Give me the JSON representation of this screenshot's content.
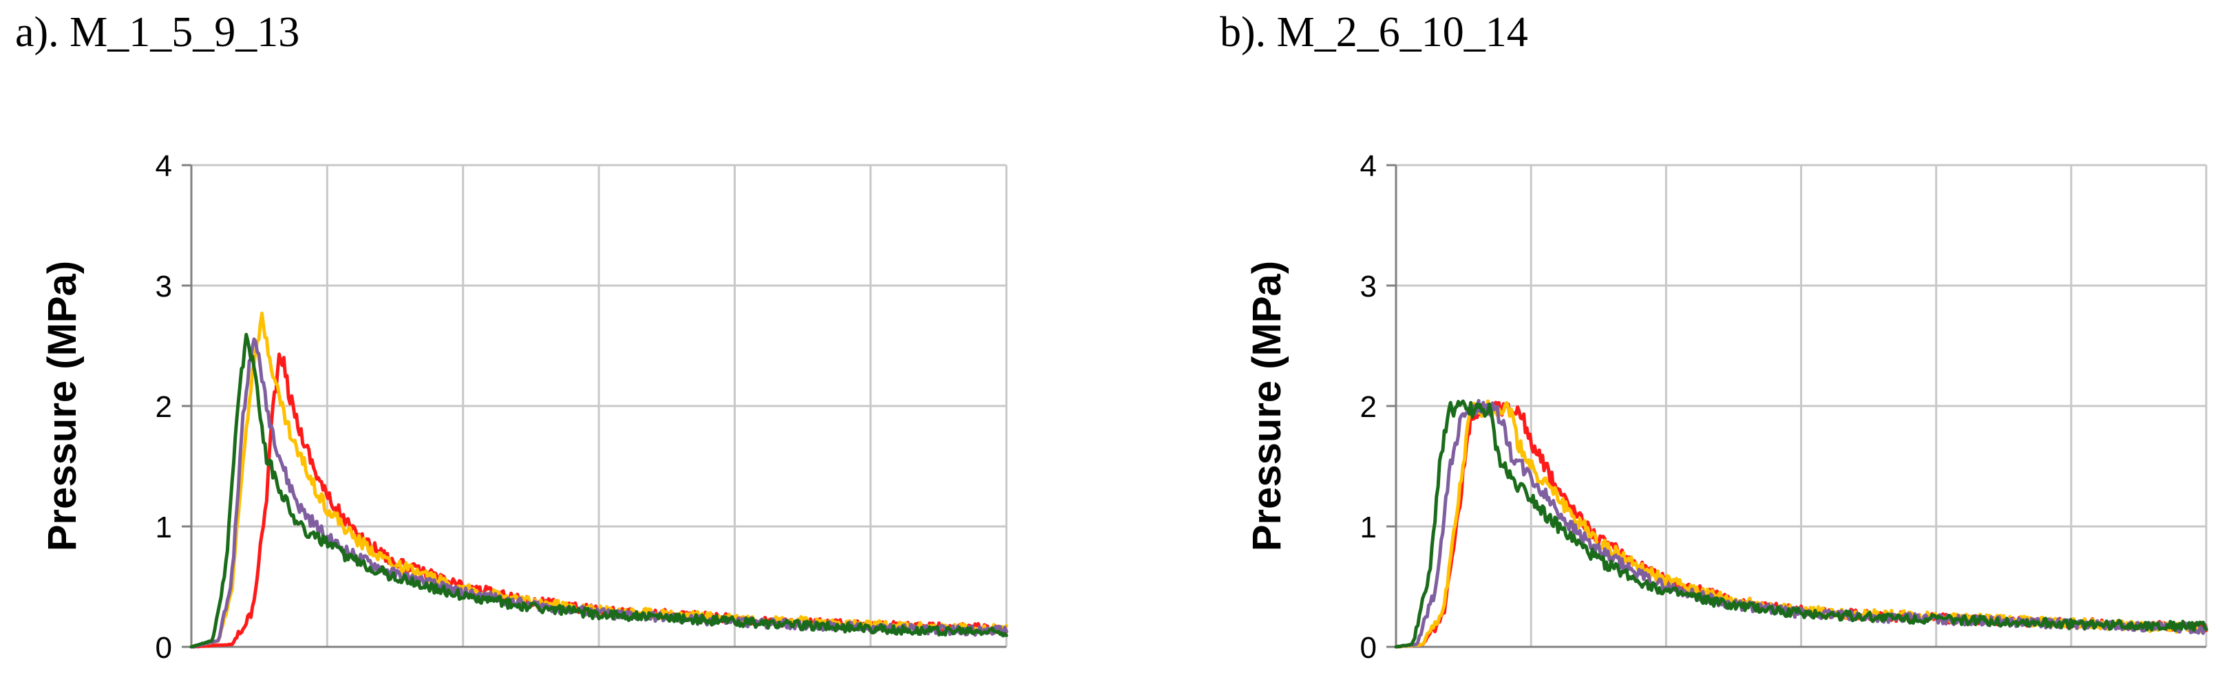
{
  "colors": {
    "red": "#ff1a1a",
    "yellow": "#ffc000",
    "purple": "#7f5f9f",
    "green": "#1a6b1a",
    "grid": "#c8c8c8",
    "axis": "#808080"
  },
  "chart_data": [
    {
      "type": "line",
      "title": "a). M_1_5_9_13",
      "xlabel": "",
      "ylabel": "Pressure (MPa)",
      "ylim": [
        0,
        4
      ],
      "yticks": [
        "0",
        "1",
        "2",
        "3",
        "4"
      ],
      "xlim": [
        0,
        6
      ],
      "grid": true,
      "x_tick_labels_visible": false,
      "series": [
        {
          "color": "#ff1a1a",
          "x": [
            0,
            0.3,
            0.45,
            0.55,
            0.6,
            0.65,
            0.68,
            0.72,
            0.8,
            0.9,
            1.0,
            1.2,
            1.5,
            2.0,
            2.5,
            3.0,
            3.5,
            4.0,
            4.5,
            5.0,
            5.5,
            6.0
          ],
          "y": [
            0,
            0.02,
            0.3,
            1.2,
            2.0,
            2.4,
            2.35,
            2.1,
            1.8,
            1.5,
            1.25,
            0.95,
            0.7,
            0.5,
            0.38,
            0.3,
            0.27,
            0.23,
            0.2,
            0.18,
            0.16,
            0.15
          ]
        },
        {
          "color": "#ffc000",
          "x": [
            0,
            0.2,
            0.3,
            0.4,
            0.47,
            0.52,
            0.58,
            0.65,
            0.75,
            0.9,
            1.0,
            1.2,
            1.5,
            2.0,
            2.5,
            3.0,
            3.5,
            4.0,
            4.5,
            5.0,
            5.5,
            6.0
          ],
          "y": [
            0,
            0.05,
            0.5,
            1.8,
            2.5,
            2.72,
            2.4,
            2.05,
            1.7,
            1.35,
            1.15,
            0.9,
            0.68,
            0.48,
            0.37,
            0.3,
            0.27,
            0.24,
            0.21,
            0.18,
            0.16,
            0.15
          ]
        },
        {
          "color": "#7f5f9f",
          "x": [
            0,
            0.2,
            0.3,
            0.38,
            0.45,
            0.5,
            0.55,
            0.62,
            0.7,
            0.8,
            1.0,
            1.2,
            1.5,
            2.0,
            2.5,
            3.0,
            3.5,
            4.0,
            4.5,
            5.0,
            5.5,
            6.0
          ],
          "y": [
            0,
            0.05,
            0.6,
            1.9,
            2.55,
            2.4,
            2.0,
            1.7,
            1.4,
            1.15,
            0.9,
            0.75,
            0.6,
            0.45,
            0.35,
            0.28,
            0.24,
            0.21,
            0.18,
            0.16,
            0.14,
            0.13
          ]
        },
        {
          "color": "#1a6b1a",
          "x": [
            0,
            0.15,
            0.25,
            0.33,
            0.4,
            0.45,
            0.5,
            0.55,
            0.6,
            0.7,
            0.8,
            1.0,
            1.2,
            1.5,
            2.0,
            2.5,
            3.0,
            3.5,
            4.0,
            4.5,
            5.0,
            5.5,
            6.0
          ],
          "y": [
            0,
            0.05,
            0.6,
            1.8,
            2.6,
            2.4,
            2.0,
            1.6,
            1.45,
            1.2,
            1.0,
            0.85,
            0.72,
            0.58,
            0.42,
            0.33,
            0.27,
            0.24,
            0.21,
            0.18,
            0.15,
            0.13,
            0.12
          ]
        }
      ]
    },
    {
      "type": "line",
      "title": "b). M_2_6_10_14",
      "xlabel": "",
      "ylabel": "Pressure (MPa)",
      "ylim": [
        0,
        4
      ],
      "yticks": [
        "0",
        "1",
        "2",
        "3",
        "4"
      ],
      "xlim": [
        0,
        6
      ],
      "grid": true,
      "x_tick_labels_visible": false,
      "series": [
        {
          "color": "#ff1a1a",
          "x": [
            0,
            0.2,
            0.35,
            0.45,
            0.55,
            0.65,
            0.75,
            0.85,
            0.92,
            0.98,
            1.05,
            1.15,
            1.3,
            1.5,
            1.8,
            2.0,
            2.5,
            3.0,
            3.5,
            4.0,
            4.5,
            5.0,
            5.5,
            6.0
          ],
          "y": [
            0,
            0.02,
            0.25,
            1.0,
            1.9,
            1.98,
            1.98,
            1.97,
            1.97,
            1.75,
            1.6,
            1.4,
            1.15,
            0.9,
            0.68,
            0.55,
            0.38,
            0.3,
            0.26,
            0.24,
            0.22,
            0.2,
            0.18,
            0.16
          ]
        },
        {
          "color": "#ffc000",
          "x": [
            0,
            0.2,
            0.35,
            0.45,
            0.55,
            0.65,
            0.75,
            0.85,
            0.9,
            1.0,
            1.15,
            1.3,
            1.5,
            1.8,
            2.0,
            2.5,
            3.0,
            3.5,
            4.0,
            4.5,
            5.0,
            5.5,
            6.0
          ],
          "y": [
            0,
            0.02,
            0.3,
            1.1,
            1.95,
            1.98,
            1.98,
            1.97,
            1.7,
            1.5,
            1.3,
            1.1,
            0.88,
            0.66,
            0.55,
            0.38,
            0.3,
            0.27,
            0.25,
            0.22,
            0.2,
            0.17,
            0.15
          ]
        },
        {
          "color": "#7f5f9f",
          "x": [
            0,
            0.15,
            0.3,
            0.4,
            0.5,
            0.6,
            0.7,
            0.78,
            0.85,
            1.0,
            1.15,
            1.3,
            1.5,
            1.8,
            2.0,
            2.5,
            3.0,
            3.5,
            4.0,
            4.5,
            5.0,
            5.5,
            6.0
          ],
          "y": [
            0,
            0.02,
            0.5,
            1.5,
            1.98,
            1.98,
            1.98,
            1.9,
            1.6,
            1.4,
            1.2,
            1.0,
            0.8,
            0.6,
            0.5,
            0.35,
            0.28,
            0.25,
            0.23,
            0.21,
            0.19,
            0.17,
            0.15
          ]
        },
        {
          "color": "#1a6b1a",
          "x": [
            0,
            0.12,
            0.25,
            0.33,
            0.4,
            0.5,
            0.6,
            0.7,
            0.75,
            0.85,
            1.0,
            1.15,
            1.3,
            1.5,
            1.8,
            2.0,
            2.5,
            3.0,
            3.5,
            4.0,
            4.5,
            5.0,
            5.5,
            6.0
          ],
          "y": [
            0,
            0.02,
            0.6,
            1.6,
            1.98,
            1.98,
            1.97,
            1.95,
            1.6,
            1.4,
            1.25,
            1.05,
            0.9,
            0.72,
            0.55,
            0.46,
            0.34,
            0.28,
            0.25,
            0.23,
            0.21,
            0.19,
            0.18,
            0.17
          ]
        }
      ]
    }
  ]
}
